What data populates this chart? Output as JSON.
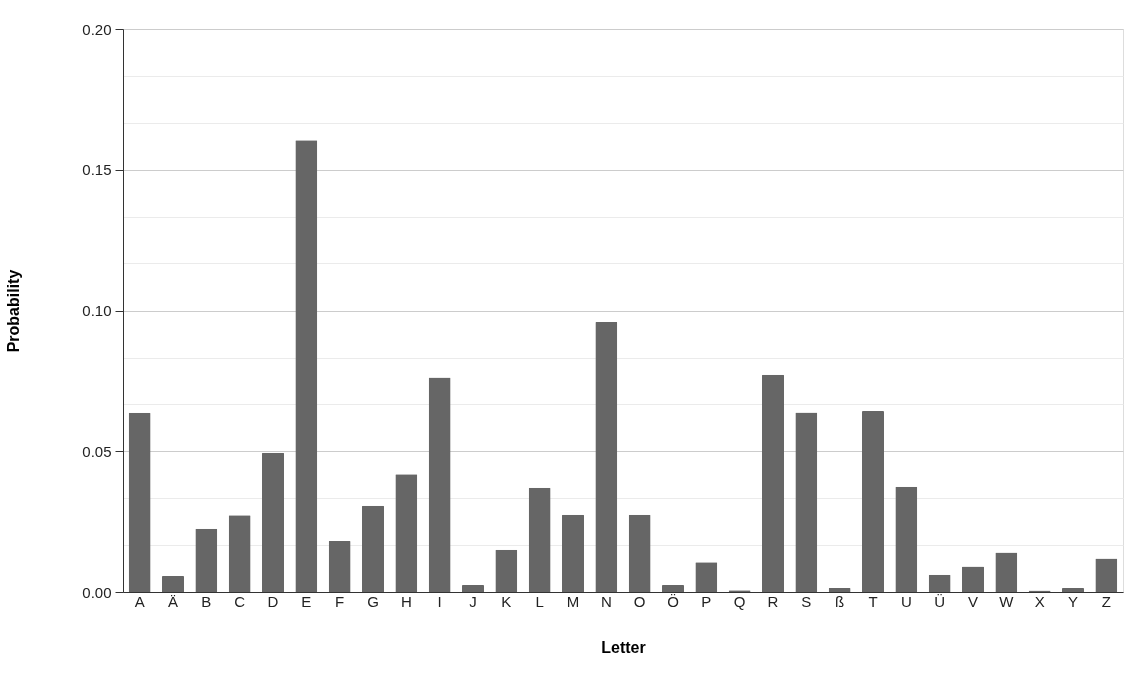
{
  "chart_data": {
    "type": "bar",
    "xlabel": "Letter",
    "ylabel": "Probability",
    "color": "#666666",
    "categories": [
      "A",
      "Ä",
      "B",
      "C",
      "D",
      "E",
      "F",
      "G",
      "H",
      "I",
      "J",
      "K",
      "L",
      "M",
      "N",
      "O",
      "Ö",
      "P",
      "Q",
      "R",
      "S",
      "ß",
      "T",
      "U",
      "Ü",
      "V",
      "W",
      "X",
      "Y",
      "Z"
    ],
    "values": [
      0.0637,
      0.0057,
      0.0225,
      0.0273,
      0.0495,
      0.1605,
      0.0181,
      0.0306,
      0.0418,
      0.0762,
      0.0025,
      0.015,
      0.037,
      0.0274,
      0.0959,
      0.0274,
      0.0025,
      0.0106,
      0.0006,
      0.0772,
      0.0638,
      0.0014,
      0.0643,
      0.0374,
      0.0061,
      0.0091,
      0.014,
      0.0005,
      0.0014,
      0.0119
    ],
    "ylim": [
      0,
      0.2
    ],
    "yticks": [
      {
        "value": 0,
        "label": "0.00"
      },
      {
        "value": 0.0167,
        "label": null
      },
      {
        "value": 0.0333,
        "label": null
      },
      {
        "value": 0.05,
        "label": "0.05"
      },
      {
        "value": 0.0667,
        "label": null
      },
      {
        "value": 0.0833,
        "label": null
      },
      {
        "value": 0.1,
        "label": "0.10"
      },
      {
        "value": 0.1167,
        "label": null
      },
      {
        "value": 0.1333,
        "label": null
      },
      {
        "value": 0.15,
        "label": "0.15"
      },
      {
        "value": 0.1667,
        "label": null
      },
      {
        "value": 0.1833,
        "label": null
      },
      {
        "value": 0.2,
        "label": "0.20"
      }
    ],
    "grid": "y"
  }
}
